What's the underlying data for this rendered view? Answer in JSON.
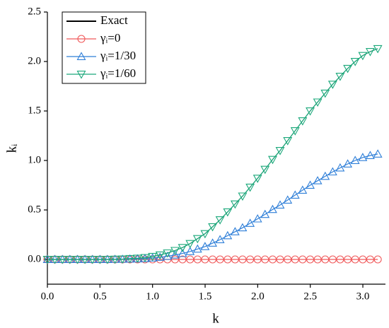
{
  "chart_data": {
    "type": "line",
    "xlabel": "k",
    "ylabel": "kᵢ",
    "x": [
      0,
      0.071,
      0.143,
      0.214,
      0.286,
      0.357,
      0.428,
      0.5,
      0.571,
      0.643,
      0.714,
      0.785,
      0.857,
      0.928,
      1.0,
      1.071,
      1.142,
      1.214,
      1.285,
      1.357,
      1.428,
      1.499,
      1.571,
      1.642,
      1.714,
      1.785,
      1.856,
      1.928,
      1.999,
      2.07,
      2.142,
      2.213,
      2.285,
      2.356,
      2.427,
      2.499,
      2.57,
      2.642,
      2.713,
      2.784,
      2.856,
      2.927,
      2.999,
      3.07,
      3.142
    ],
    "series": [
      {
        "name": "Exact",
        "color": "#000000",
        "marker": "none",
        "values": [
          0,
          0,
          0,
          0,
          0,
          0,
          0,
          0,
          0,
          0.002,
          0.004,
          0.008,
          0.012,
          0.018,
          0.03,
          0.045,
          0.065,
          0.09,
          0.12,
          0.16,
          0.21,
          0.26,
          0.33,
          0.4,
          0.48,
          0.56,
          0.64,
          0.73,
          0.82,
          0.91,
          1.01,
          1.1,
          1.2,
          1.3,
          1.4,
          1.5,
          1.59,
          1.68,
          1.77,
          1.85,
          1.93,
          2.0,
          2.06,
          2.1,
          2.13
        ]
      },
      {
        "name": "γᵢ=0",
        "color": "#f0595a",
        "marker": "circle",
        "values": [
          0,
          0,
          0,
          0,
          0,
          0,
          0,
          0,
          0,
          0,
          0,
          0,
          0,
          0,
          0,
          0,
          0,
          0,
          0,
          0,
          0,
          0,
          0,
          0,
          0,
          0,
          0,
          0,
          0,
          0,
          0,
          0,
          0,
          0,
          0,
          0,
          0,
          0,
          0,
          0,
          0,
          0,
          0,
          0,
          0
        ]
      },
      {
        "name": "γᵢ=1/30",
        "color": "#2f7fd8",
        "marker": "triangle-up",
        "values": [
          0,
          0,
          0,
          0,
          0,
          0,
          0,
          0,
          0,
          0.001,
          0.002,
          0.004,
          0.006,
          0.009,
          0.015,
          0.022,
          0.032,
          0.045,
          0.06,
          0.08,
          0.105,
          0.13,
          0.165,
          0.2,
          0.24,
          0.28,
          0.32,
          0.365,
          0.41,
          0.455,
          0.505,
          0.55,
          0.6,
          0.65,
          0.7,
          0.75,
          0.795,
          0.84,
          0.885,
          0.925,
          0.965,
          1.0,
          1.03,
          1.05,
          1.065
        ]
      },
      {
        "name": "γᵢ=1/60",
        "color": "#1aa87a",
        "marker": "triangle-down",
        "values": [
          0,
          0,
          0,
          0,
          0,
          0,
          0,
          0,
          0,
          0.002,
          0.004,
          0.008,
          0.012,
          0.018,
          0.03,
          0.045,
          0.065,
          0.09,
          0.12,
          0.16,
          0.21,
          0.26,
          0.33,
          0.4,
          0.48,
          0.56,
          0.64,
          0.73,
          0.82,
          0.91,
          1.01,
          1.1,
          1.2,
          1.3,
          1.4,
          1.5,
          1.59,
          1.68,
          1.77,
          1.85,
          1.93,
          2.0,
          2.06,
          2.1,
          2.13
        ]
      }
    ],
    "xlim": [
      0,
      3.215
    ],
    "ylim": [
      -0.25,
      2.5
    ],
    "xticks": [
      {
        "value": 0,
        "label": "0.0"
      },
      0.5,
      {
        "value": 1,
        "label": "1.0"
      },
      1.5,
      {
        "value": 2,
        "label": "2.0"
      },
      2.5,
      {
        "value": 3,
        "label": "3.0"
      }
    ],
    "yticks": [
      {
        "value": 0,
        "label": "0.0"
      },
      0.5,
      {
        "value": 1,
        "label": "1.0"
      },
      1.5,
      {
        "value": 2,
        "label": "2.0"
      },
      2.5
    ],
    "legend": "upper left"
  }
}
